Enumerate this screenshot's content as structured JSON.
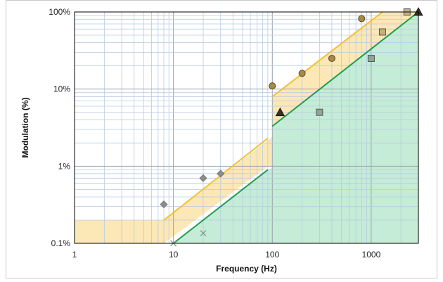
{
  "chart_data": {
    "type": "scatter",
    "title": "",
    "xlabel": "Frequency (Hz)",
    "ylabel": "Modulation (%)",
    "x_scale": "log",
    "y_scale": "log",
    "xlim": [
      1,
      3000
    ],
    "ylim": [
      0.1,
      100
    ],
    "grid": true,
    "x_ticks": [
      {
        "value": 1,
        "label": "1"
      },
      {
        "value": 10,
        "label": "10"
      },
      {
        "value": 100,
        "label": "100"
      },
      {
        "value": 1000,
        "label": "1000"
      }
    ],
    "y_ticks": [
      {
        "value": 0.1,
        "label": "0.1%"
      },
      {
        "value": 1,
        "label": "1%"
      },
      {
        "value": 10,
        "label": "10%"
      },
      {
        "value": 100,
        "label": "100%"
      }
    ],
    "regions": [
      {
        "color": "#f9d37a",
        "opacity": 0.55,
        "polygon": [
          [
            1,
            0.1
          ],
          [
            8,
            0.1
          ],
          [
            90,
            1.0
          ],
          [
            100,
            0.95
          ],
          [
            100,
            3.2
          ],
          [
            3000,
            100
          ],
          [
            1300,
            100
          ],
          [
            100,
            8.0
          ],
          [
            100,
            2.4
          ],
          [
            8,
            0.2
          ],
          [
            1,
            0.2
          ]
        ]
      },
      {
        "color": "#7fd4a4",
        "opacity": 0.45,
        "polygon": [
          [
            10,
            0.1
          ],
          [
            3000,
            0.1
          ],
          [
            3000,
            100
          ],
          [
            100,
            3.2
          ],
          [
            100,
            0.95
          ],
          [
            90,
            0.9
          ]
        ]
      }
    ],
    "lines": [
      {
        "color": "#f2c232",
        "points": [
          [
            8,
            0.2
          ],
          [
            90,
            2.3
          ]
        ]
      },
      {
        "color": "#f2c232",
        "points": [
          [
            100,
            8.0
          ],
          [
            1300,
            100
          ]
        ]
      },
      {
        "color": "#1e9c50",
        "points": [
          [
            10,
            0.1
          ],
          [
            90,
            0.9
          ]
        ]
      },
      {
        "color": "#1e9c50",
        "points": [
          [
            100,
            3.3
          ],
          [
            3000,
            100
          ]
        ]
      }
    ],
    "series": [
      {
        "marker": "diamond",
        "color": "#8c8c8c",
        "points": [
          [
            8,
            0.32
          ],
          [
            20,
            0.7
          ],
          [
            30,
            0.8
          ]
        ]
      },
      {
        "marker": "x",
        "color": "#7a9a8a",
        "points": [
          [
            10,
            0.1
          ],
          [
            20,
            0.135
          ]
        ]
      },
      {
        "marker": "circle",
        "color": "#a68a45",
        "points": [
          [
            100,
            11
          ],
          [
            200,
            16
          ],
          [
            400,
            25
          ],
          [
            800,
            82
          ]
        ]
      },
      {
        "marker": "triangle",
        "color": "#3a3220",
        "points": [
          [
            120,
            5
          ],
          [
            3000,
            100
          ]
        ]
      },
      {
        "marker": "square",
        "color": "#8aa79a",
        "points": [
          [
            300,
            5
          ],
          [
            1000,
            25
          ]
        ]
      },
      {
        "marker": "square",
        "color": "#c8ae7c",
        "points": [
          [
            1300,
            55
          ],
          [
            2300,
            100
          ]
        ]
      }
    ]
  }
}
